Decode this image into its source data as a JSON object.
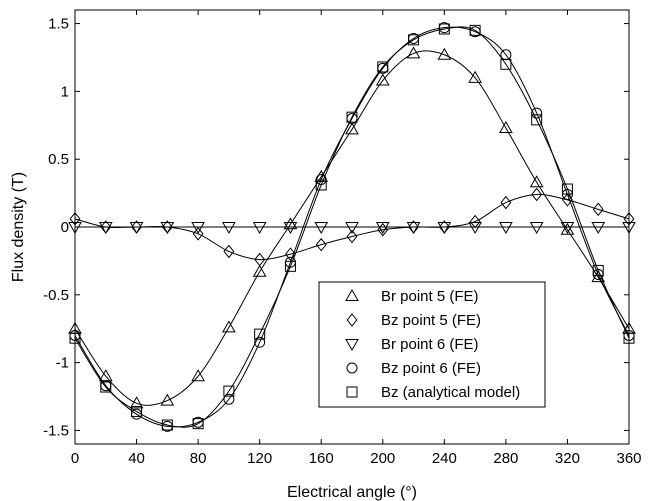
{
  "chart_data": {
    "type": "line",
    "title": "",
    "xlabel": "Electrical angle (°)",
    "ylabel": "Flux density (T)",
    "xlim": [
      0,
      360
    ],
    "ylim": [
      -1.6,
      1.6
    ],
    "xticks": [
      0,
      40,
      80,
      120,
      160,
      200,
      240,
      280,
      320,
      360
    ],
    "yticks": [
      -1.5,
      -1,
      -0.5,
      0,
      0.5,
      1,
      1.5
    ],
    "xtick_labels": [
      "0",
      "40",
      "80",
      "120",
      "160",
      "200",
      "240",
      "280",
      "320",
      "360"
    ],
    "ytick_labels": [
      "-1.5",
      "-1",
      "-0.5",
      "0",
      "0.5",
      "1",
      "1.5"
    ],
    "grid": false,
    "legend_position": "bottom-right",
    "x": [
      0,
      20,
      40,
      60,
      80,
      100,
      120,
      140,
      160,
      180,
      200,
      220,
      240,
      260,
      280,
      300,
      320,
      340,
      360
    ],
    "series": [
      {
        "name": "Br point 5 (FE)",
        "marker": "triangle-up",
        "values": [
          -0.75,
          -1.1,
          -1.3,
          -1.28,
          -1.1,
          -0.74,
          -0.33,
          0.02,
          0.37,
          0.72,
          1.08,
          1.28,
          1.27,
          1.1,
          0.73,
          0.33,
          -0.02,
          -0.37,
          -0.75
        ]
      },
      {
        "name": "Bz point 5 (FE)",
        "marker": "diamond",
        "values": [
          0.06,
          0.0,
          0.0,
          0.0,
          -0.05,
          -0.18,
          -0.24,
          -0.2,
          -0.13,
          -0.07,
          -0.02,
          0.0,
          0.0,
          0.04,
          0.18,
          0.24,
          0.2,
          0.13,
          0.06
        ]
      },
      {
        "name": "Br point 6 (FE)",
        "marker": "triangle-down",
        "values": [
          0.0,
          0.0,
          0.0,
          0.0,
          0.0,
          0.0,
          0.0,
          0.0,
          0.0,
          0.0,
          0.0,
          0.0,
          0.0,
          0.0,
          0.0,
          0.0,
          0.0,
          0.0,
          0.0
        ]
      },
      {
        "name": "Bz point 6 (FE)",
        "marker": "circle",
        "values": [
          -0.8,
          -1.17,
          -1.38,
          -1.47,
          -1.44,
          -1.27,
          -0.85,
          -0.26,
          0.35,
          0.8,
          1.17,
          1.39,
          1.47,
          1.44,
          1.27,
          0.84,
          0.24,
          -0.35,
          -0.8
        ]
      },
      {
        "name": "Bz (analytical model)",
        "marker": "square",
        "values": [
          -0.82,
          -1.18,
          -1.36,
          -1.46,
          -1.45,
          -1.21,
          -0.79,
          -0.29,
          0.31,
          0.81,
          1.18,
          1.38,
          1.46,
          1.45,
          1.2,
          0.79,
          0.28,
          -0.32,
          -0.82
        ]
      }
    ]
  }
}
